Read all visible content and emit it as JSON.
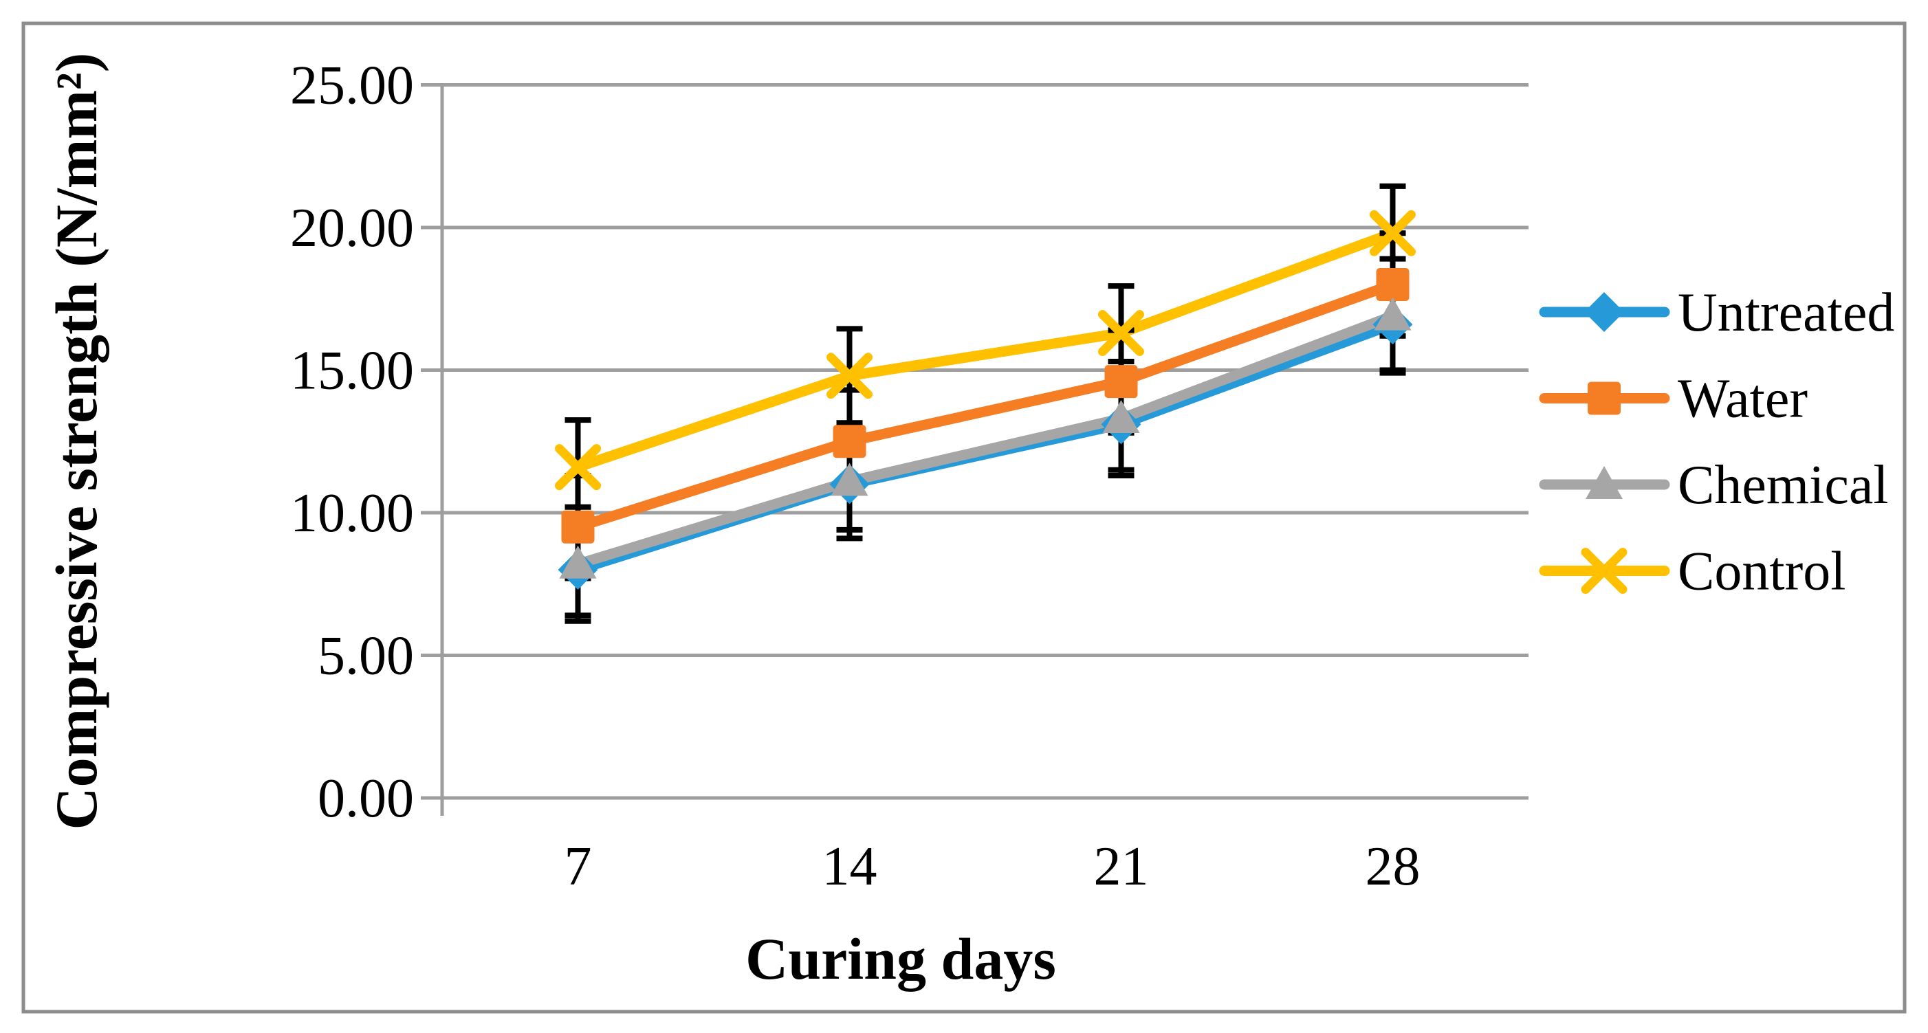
{
  "chart_data": {
    "type": "line",
    "title": "",
    "xlabel": "Curing days",
    "ylabel": "Compressive strength (N/mm²)",
    "x_tick_labels": [
      "7",
      "14",
      "21",
      "28"
    ],
    "x_values": [
      7,
      14,
      21,
      28
    ],
    "ylim": [
      0,
      25
    ],
    "ytick_step": 5,
    "ytick_labels": [
      "0.00",
      "5.00",
      "10.00",
      "15.00",
      "20.00",
      "25.00"
    ],
    "grid": true,
    "legend_position": "right-middle",
    "units": "N/mm²",
    "series": [
      {
        "name": "Untreated",
        "color": "#2699D8",
        "marker": "diamond",
        "values": [
          8.0,
          11.0,
          13.1,
          16.6
        ],
        "error_bar": 1.6
      },
      {
        "name": "Water",
        "color": "#F57E25",
        "marker": "square",
        "values": [
          9.5,
          12.5,
          14.6,
          18.0
        ],
        "error_bar": 1.8
      },
      {
        "name": "Chemical",
        "color": "#A6A6A6",
        "marker": "triangle",
        "values": [
          8.2,
          11.1,
          13.3,
          16.9
        ],
        "error_bar": 2.0
      },
      {
        "name": "Control",
        "color": "#FFC000",
        "marker": "x",
        "values": [
          11.6,
          14.8,
          16.3,
          19.8
        ],
        "error_bar": 1.65
      }
    ],
    "style": {
      "gridline_color": "#9E9E9E",
      "axis_color": "#9E9E9E",
      "error_bar_color": "#000000",
      "figure_border_color": "#8C8C8C",
      "background": "#FFFFFF"
    }
  }
}
